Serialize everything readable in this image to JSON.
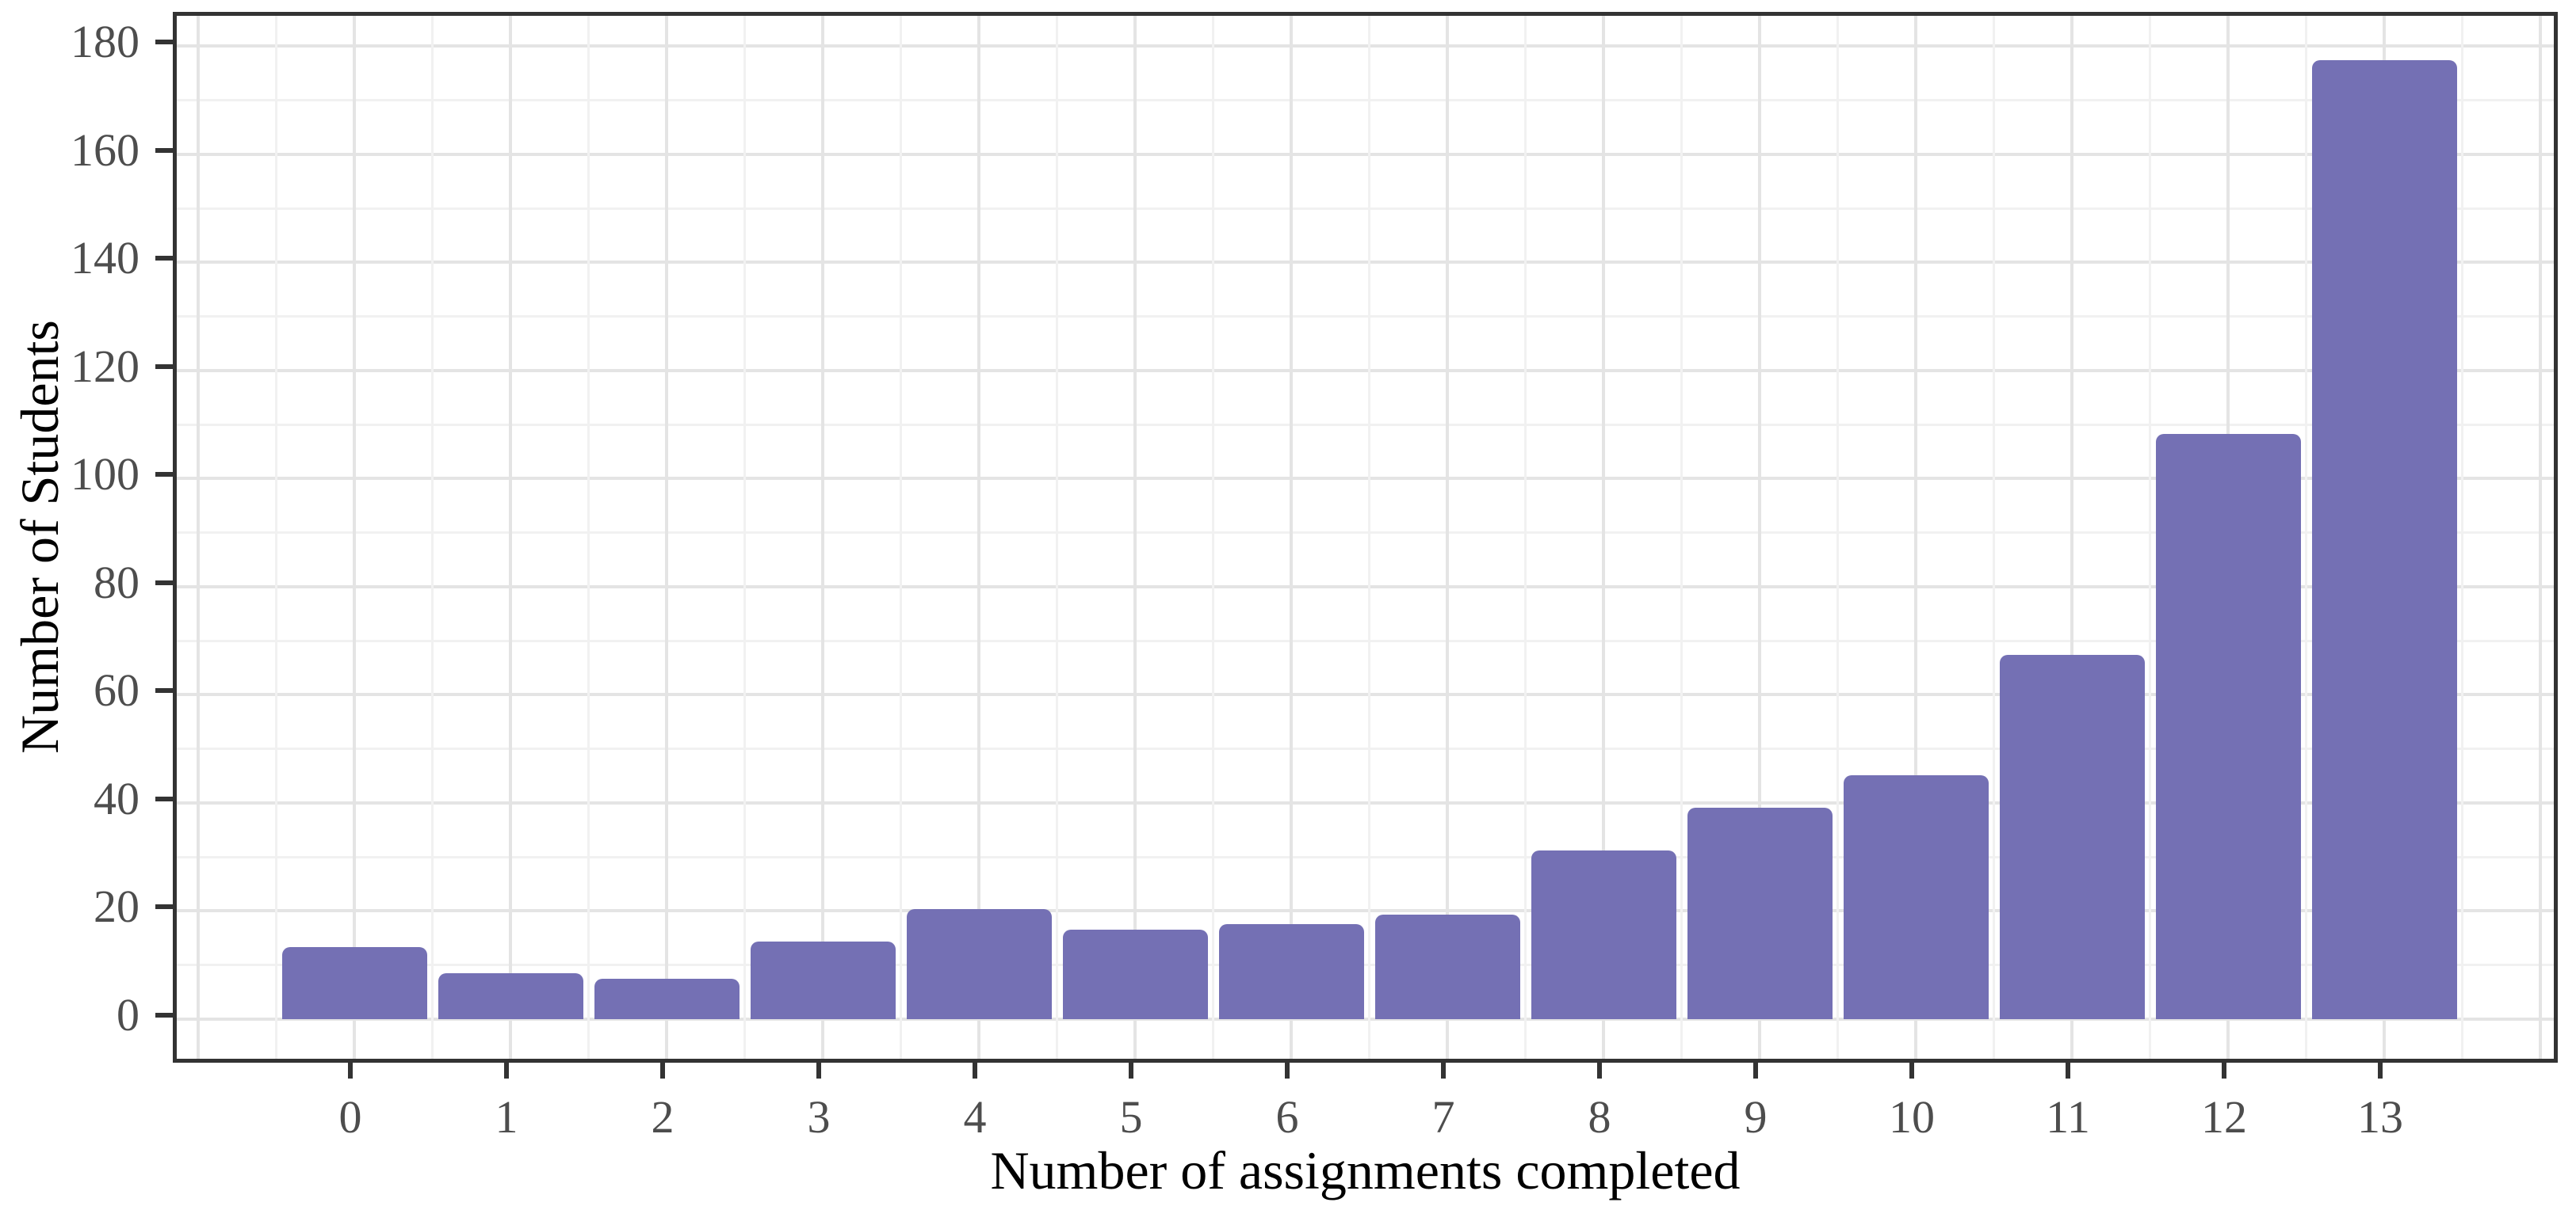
{
  "chart_data": {
    "type": "bar",
    "title": "",
    "xlabel": "Number of assignments completed",
    "ylabel": "Number of Students",
    "categories": [
      "0",
      "1",
      "2",
      "3",
      "4",
      "5",
      "6",
      "7",
      "8",
      "9",
      "10",
      "11",
      "12",
      "13"
    ],
    "values": [
      13.3,
      8.5,
      7.4,
      14.4,
      20.4,
      16.5,
      17.6,
      19.4,
      31.2,
      39.1,
      45.1,
      67.4,
      108.3,
      177.4
    ],
    "y_tick_labels": [
      "0",
      "20",
      "40",
      "60",
      "80",
      "100",
      "120",
      "140",
      "160",
      "180"
    ],
    "y_ticks": [
      0,
      20,
      40,
      60,
      80,
      100,
      120,
      140,
      160,
      180
    ],
    "y_minor_ticks": [
      10,
      30,
      50,
      70,
      90,
      110,
      130,
      150,
      170
    ],
    "ylim": [
      0,
      180
    ],
    "grid": "major and minor, light gray on white",
    "legend": "none",
    "colors": {
      "bar_fill": "#7470b4",
      "panel_border": "#333333",
      "grid_major": "#e4e4e4",
      "grid_minor": "#f1f1f1",
      "tick_mark": "#333333",
      "tick_label": "#4d4d4d",
      "axis_title": "#000000",
      "background": "#ffffff"
    }
  }
}
